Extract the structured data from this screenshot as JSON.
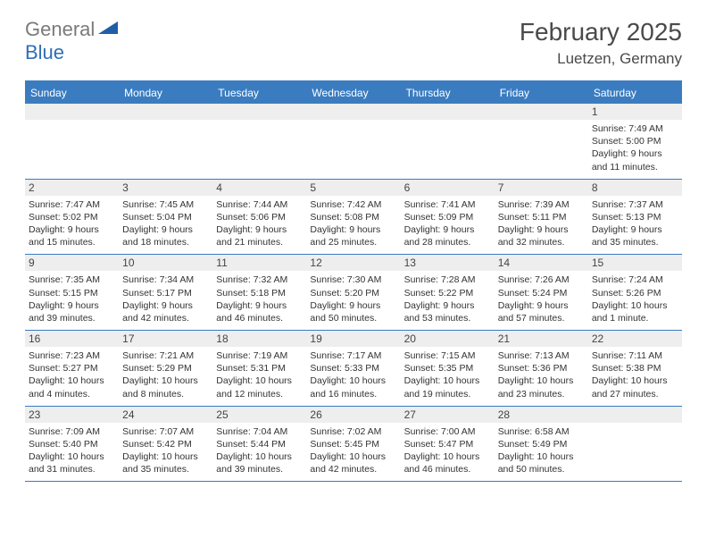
{
  "logo": {
    "text1": "General",
    "text2": "Blue",
    "color1": "#7a7a7a",
    "color2": "#2f6fb3",
    "shape_color": "#1f5fa8"
  },
  "header": {
    "month_title": "February 2025",
    "location": "Luetzen, Germany"
  },
  "colors": {
    "header_bar": "#3b7cc0",
    "header_text": "#ffffff",
    "daynum_bg": "#eeeeee",
    "rule": "#3b7cc0",
    "body_text": "#333333"
  },
  "day_labels": [
    "Sunday",
    "Monday",
    "Tuesday",
    "Wednesday",
    "Thursday",
    "Friday",
    "Saturday"
  ],
  "weeks": [
    [
      null,
      null,
      null,
      null,
      null,
      null,
      {
        "n": "1",
        "sunrise": "7:49 AM",
        "sunset": "5:00 PM",
        "day_h": "9",
        "day_m": "11"
      }
    ],
    [
      {
        "n": "2",
        "sunrise": "7:47 AM",
        "sunset": "5:02 PM",
        "day_h": "9",
        "day_m": "15"
      },
      {
        "n": "3",
        "sunrise": "7:45 AM",
        "sunset": "5:04 PM",
        "day_h": "9",
        "day_m": "18"
      },
      {
        "n": "4",
        "sunrise": "7:44 AM",
        "sunset": "5:06 PM",
        "day_h": "9",
        "day_m": "21"
      },
      {
        "n": "5",
        "sunrise": "7:42 AM",
        "sunset": "5:08 PM",
        "day_h": "9",
        "day_m": "25"
      },
      {
        "n": "6",
        "sunrise": "7:41 AM",
        "sunset": "5:09 PM",
        "day_h": "9",
        "day_m": "28"
      },
      {
        "n": "7",
        "sunrise": "7:39 AM",
        "sunset": "5:11 PM",
        "day_h": "9",
        "day_m": "32"
      },
      {
        "n": "8",
        "sunrise": "7:37 AM",
        "sunset": "5:13 PM",
        "day_h": "9",
        "day_m": "35"
      }
    ],
    [
      {
        "n": "9",
        "sunrise": "7:35 AM",
        "sunset": "5:15 PM",
        "day_h": "9",
        "day_m": "39"
      },
      {
        "n": "10",
        "sunrise": "7:34 AM",
        "sunset": "5:17 PM",
        "day_h": "9",
        "day_m": "42"
      },
      {
        "n": "11",
        "sunrise": "7:32 AM",
        "sunset": "5:18 PM",
        "day_h": "9",
        "day_m": "46"
      },
      {
        "n": "12",
        "sunrise": "7:30 AM",
        "sunset": "5:20 PM",
        "day_h": "9",
        "day_m": "50"
      },
      {
        "n": "13",
        "sunrise": "7:28 AM",
        "sunset": "5:22 PM",
        "day_h": "9",
        "day_m": "53"
      },
      {
        "n": "14",
        "sunrise": "7:26 AM",
        "sunset": "5:24 PM",
        "day_h": "9",
        "day_m": "57"
      },
      {
        "n": "15",
        "sunrise": "7:24 AM",
        "sunset": "5:26 PM",
        "day_h": "10",
        "day_m": "1"
      }
    ],
    [
      {
        "n": "16",
        "sunrise": "7:23 AM",
        "sunset": "5:27 PM",
        "day_h": "10",
        "day_m": "4"
      },
      {
        "n": "17",
        "sunrise": "7:21 AM",
        "sunset": "5:29 PM",
        "day_h": "10",
        "day_m": "8"
      },
      {
        "n": "18",
        "sunrise": "7:19 AM",
        "sunset": "5:31 PM",
        "day_h": "10",
        "day_m": "12"
      },
      {
        "n": "19",
        "sunrise": "7:17 AM",
        "sunset": "5:33 PM",
        "day_h": "10",
        "day_m": "16"
      },
      {
        "n": "20",
        "sunrise": "7:15 AM",
        "sunset": "5:35 PM",
        "day_h": "10",
        "day_m": "19"
      },
      {
        "n": "21",
        "sunrise": "7:13 AM",
        "sunset": "5:36 PM",
        "day_h": "10",
        "day_m": "23"
      },
      {
        "n": "22",
        "sunrise": "7:11 AM",
        "sunset": "5:38 PM",
        "day_h": "10",
        "day_m": "27"
      }
    ],
    [
      {
        "n": "23",
        "sunrise": "7:09 AM",
        "sunset": "5:40 PM",
        "day_h": "10",
        "day_m": "31"
      },
      {
        "n": "24",
        "sunrise": "7:07 AM",
        "sunset": "5:42 PM",
        "day_h": "10",
        "day_m": "35"
      },
      {
        "n": "25",
        "sunrise": "7:04 AM",
        "sunset": "5:44 PM",
        "day_h": "10",
        "day_m": "39"
      },
      {
        "n": "26",
        "sunrise": "7:02 AM",
        "sunset": "5:45 PM",
        "day_h": "10",
        "day_m": "42"
      },
      {
        "n": "27",
        "sunrise": "7:00 AM",
        "sunset": "5:47 PM",
        "day_h": "10",
        "day_m": "46"
      },
      {
        "n": "28",
        "sunrise": "6:58 AM",
        "sunset": "5:49 PM",
        "day_h": "10",
        "day_m": "50"
      },
      null
    ]
  ],
  "labels": {
    "sunrise_prefix": "Sunrise: ",
    "sunset_prefix": "Sunset: ",
    "daylight_prefix": "Daylight: ",
    "hours_word": " hours",
    "and_word": "and ",
    "minutes_word": " minutes.",
    "minute_word": " minute."
  }
}
